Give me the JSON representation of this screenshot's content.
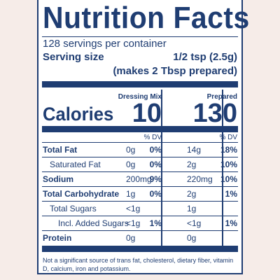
{
  "title": "Nutrition Facts",
  "servings_per_container": "128 servings per container",
  "serving_size_label": "Serving size",
  "serving_size_value": "1/2 tsp (2.5g)",
  "serving_size_note": "(makes 2 Tbsp prepared)",
  "columns": {
    "mix_header": "Dressing Mix",
    "prepared_header": "Prepared",
    "dv_label": "% DV"
  },
  "calories": {
    "label": "Calories",
    "mix": "10",
    "prepared": "130"
  },
  "rows": [
    {
      "name": "Total Fat",
      "mix_amt": "0g",
      "mix_dv": "0%",
      "prep_amt": "14g",
      "prep_dv": "18%"
    },
    {
      "name": "Saturated Fat",
      "mix_amt": "0g",
      "mix_dv": "0%",
      "prep_amt": "2g",
      "prep_dv": "10%"
    },
    {
      "name": "Sodium",
      "mix_amt": "200mg",
      "mix_dv": "9%",
      "prep_amt": "220mg",
      "prep_dv": "10%"
    },
    {
      "name": "Total Carbohydrate",
      "mix_amt": "1g",
      "mix_dv": "0%",
      "prep_amt": "2g",
      "prep_dv": "1%"
    },
    {
      "name": "Total Sugars",
      "mix_amt": "<1g",
      "mix_dv": "",
      "prep_amt": "1g",
      "prep_dv": ""
    },
    {
      "name": "Incl. Added Sugars",
      "mix_amt": "<1g",
      "mix_dv": "1%",
      "prep_amt": "<1g",
      "prep_dv": "1%"
    },
    {
      "name": "Protein",
      "mix_amt": "0g",
      "mix_dv": "",
      "prep_amt": "0g",
      "prep_dv": ""
    }
  ],
  "footnote": "Not a significant source of trans fat, cholesterol, dietary fiber, vitamin D, calcium, iron and potassium.",
  "colors": {
    "ink": "#1f3d72",
    "background": "#f6ece8",
    "panel": "#ffffff"
  }
}
